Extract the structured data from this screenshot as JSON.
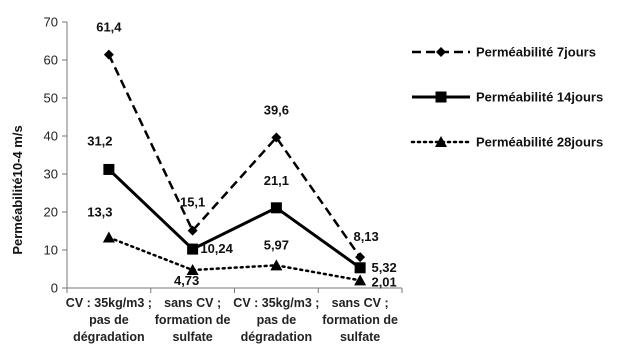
{
  "chart_data": {
    "type": "line",
    "title": "",
    "xlabel": "",
    "ylabel": "Perméabilité10-4 m/s",
    "ylim": [
      0,
      70
    ],
    "yticks": [
      0,
      10,
      20,
      30,
      40,
      50,
      60,
      70
    ],
    "grid": false,
    "legend_position": "right",
    "categories": [
      [
        "CV : 35kg/m3 ;",
        "pas de",
        "dégradation"
      ],
      [
        "sans CV ;",
        "formation de",
        "sulfate"
      ],
      [
        "CV : 35kg/m3 ;",
        "pas de",
        "dégradation"
      ],
      [
        "sans CV ;",
        "formation de",
        "sulfate"
      ]
    ],
    "series": [
      {
        "name": "Perméabilité 7jours",
        "values": [
          61.4,
          15.1,
          39.6,
          8.13
        ],
        "labels": [
          "61,4",
          "15,1",
          "39,6",
          "8,13"
        ],
        "style": "dashed",
        "marker": "diamond",
        "color": "#000000"
      },
      {
        "name": "Perméabilité 14jours",
        "values": [
          31.2,
          10.24,
          21.1,
          5.32
        ],
        "labels": [
          "31,2",
          "10,24",
          "21,1",
          "5,32"
        ],
        "style": "solid",
        "marker": "square",
        "color": "#000000"
      },
      {
        "name": "Perméabilité 28jours",
        "values": [
          13.3,
          4.73,
          5.97,
          2.01
        ],
        "labels": [
          "13,3",
          "4,73",
          "5,97",
          "2,01"
        ],
        "style": "dotted",
        "marker": "triangle",
        "color": "#000000"
      }
    ]
  }
}
